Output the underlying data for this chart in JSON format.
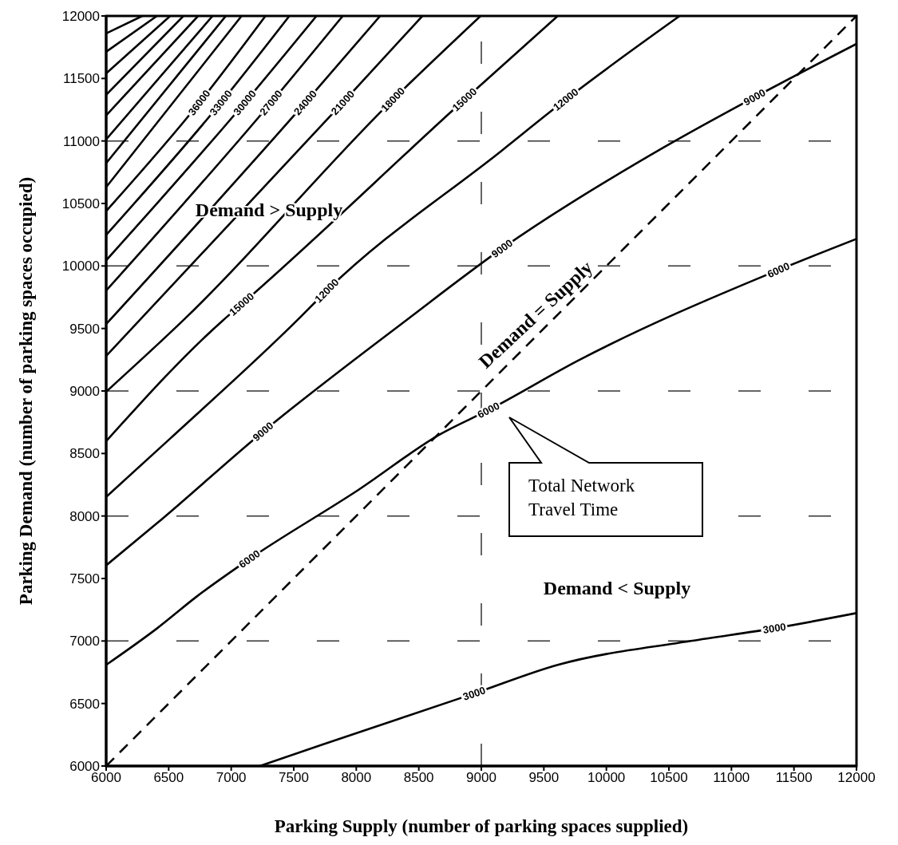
{
  "chart_data": {
    "type": "line",
    "xlabel": "Parking Supply (number of parking spaces supplied)",
    "ylabel": "Parking Demand (number of parking spaces occupied)",
    "xlim": [
      6000,
      12000
    ],
    "ylim": [
      6000,
      12000
    ],
    "xticks": [
      6000,
      6500,
      7000,
      7500,
      8000,
      8500,
      9000,
      9500,
      10000,
      10500,
      11000,
      11500,
      12000
    ],
    "yticks": [
      6000,
      6500,
      7000,
      7500,
      8000,
      8500,
      9000,
      9500,
      10000,
      10500,
      11000,
      11500,
      12000
    ],
    "series": [
      {
        "color": "#000000",
        "x": [
          7229,
          7732,
          8943,
          9611,
          10675,
          11344,
          12000
        ],
        "values": [
          6000,
          6172,
          6580,
          6809,
          7000,
          7102,
          7223
        ]
      },
      {
        "color": "#000000",
        "x": [
          6000,
          6408,
          6726,
          7146,
          8019,
          8675,
          9057,
          9783,
          11376,
          12000
        ],
        "values": [
          6809,
          7102,
          7357,
          7656,
          8210,
          8656,
          8847,
          9248,
          9968,
          10217
        ]
      },
      {
        "color": "#000000",
        "x": [
          6000,
          6408,
          7255,
          8401,
          9166,
          10459,
          11185,
          12000
        ],
        "values": [
          7605,
          7943,
          8675,
          9567,
          10140,
          10949,
          11350,
          11777
        ]
      },
      {
        "color": "#000000",
        "x": [
          6000,
          6510,
          7529,
          7764,
          9166,
          9675,
          10586
        ],
        "values": [
          8153,
          8618,
          9567,
          9803,
          10925,
          11331,
          12000
        ]
      },
      {
        "color": "#000000",
        "x": [
          6000,
          6936,
          7083,
          8866,
          9611
        ],
        "values": [
          8599,
          9567,
          9694,
          11331,
          12000
        ]
      },
      {
        "color": "#000000",
        "x": [
          6000,
          6618,
          8293,
          8994
        ],
        "values": [
          8994,
          9567,
          11331,
          12000
        ]
      },
      {
        "color": "#000000",
        "x": [
          6000,
          7892,
          8529
        ],
        "values": [
          9280,
          11306,
          12000
        ]
      },
      {
        "color": "#000000",
        "x": [
          6000,
          7592,
          8191
        ],
        "values": [
          9535,
          11306,
          12000
        ]
      },
      {
        "color": "#000000",
        "x": [
          6000,
          7318,
          7892
        ],
        "values": [
          9803,
          11306,
          12000
        ]
      },
      {
        "color": "#000000",
        "x": [
          6000,
          7108,
          7682
        ],
        "values": [
          10045,
          11306,
          12000
        ]
      },
      {
        "color": "#000000",
        "x": [
          6000,
          6917,
          7465
        ],
        "values": [
          10248,
          11306,
          12000
        ]
      },
      {
        "color": "#000000",
        "x": [
          6000,
          6745,
          7274
        ],
        "values": [
          10439,
          11306,
          12000
        ]
      },
      {
        "color": "#000000",
        "x": [
          6000,
          7083
        ],
        "values": [
          10631,
          12000
        ]
      },
      {
        "color": "#000000",
        "x": [
          6000,
          6957
        ],
        "values": [
          10822,
          12000
        ]
      },
      {
        "color": "#000000",
        "x": [
          6000,
          6851
        ],
        "values": [
          11013,
          12000
        ]
      },
      {
        "color": "#000000",
        "x": [
          6000,
          6735
        ],
        "values": [
          11204,
          12000
        ]
      },
      {
        "color": "#000000",
        "x": [
          6000,
          6618
        ],
        "values": [
          11369,
          12000
        ]
      },
      {
        "color": "#000000",
        "x": [
          6000,
          6512
        ],
        "values": [
          11541,
          12000
        ]
      },
      {
        "color": "#000000",
        "x": [
          6000,
          6406
        ],
        "values": [
          11713,
          12000
        ]
      },
      {
        "color": "#000000",
        "x": [
          6000,
          6289
        ],
        "values": [
          11860,
          12000
        ]
      },
      {
        "color": "#000000",
        "line_style": "dashed",
        "x": [
          6000,
          12000
        ],
        "values": [
          6000,
          12000
        ]
      }
    ],
    "ref_lines": [
      {
        "axis": "y",
        "value": 7000,
        "line_style": "dashed",
        "color": "#333333"
      },
      {
        "axis": "y",
        "value": 8000,
        "line_style": "dashed",
        "color": "#333333"
      },
      {
        "axis": "y",
        "value": 9000,
        "line_style": "dashed",
        "color": "#333333"
      },
      {
        "axis": "y",
        "value": 10000,
        "line_style": "dashed",
        "color": "#333333"
      },
      {
        "axis": "y",
        "value": 11000,
        "line_style": "dashed",
        "color": "#333333"
      },
      {
        "axis": "x",
        "value": 9000,
        "line_style": "dashed",
        "color": "#333333"
      }
    ],
    "annotations": [
      "Demand > Supply",
      "Demand < Supply",
      "Total Network Travel Time",
      "Demand = Supply",
      {
        "text": "36000",
        "x": 6745,
        "y": 11306
      },
      {
        "text": "33000",
        "x": 6917,
        "y": 11306
      },
      {
        "text": "30000",
        "x": 7108,
        "y": 11306
      },
      {
        "text": "27000",
        "x": 7318,
        "y": 11306
      },
      {
        "text": "24000",
        "x": 7592,
        "y": 11306
      },
      {
        "text": "21000",
        "x": 7892,
        "y": 11306
      },
      {
        "text": "18000",
        "x": 8293,
        "y": 11331
      },
      {
        "text": "15000",
        "x": 8866,
        "y": 11331
      },
      {
        "text": "12000",
        "x": 9675,
        "y": 11331
      },
      {
        "text": "9000",
        "x": 11185,
        "y": 11350
      },
      {
        "text": "15000",
        "x": 7083,
        "y": 9694
      },
      {
        "text": "12000",
        "x": 7764,
        "y": 9803
      },
      {
        "text": "9000",
        "x": 9166,
        "y": 10140
      },
      {
        "text": "9000",
        "x": 7255,
        "y": 8675
      },
      {
        "text": "6000",
        "x": 11376,
        "y": 9968
      },
      {
        "text": "6000",
        "x": 9057,
        "y": 8847
      },
      {
        "text": "6000",
        "x": 7146,
        "y": 7656
      },
      {
        "text": "3000",
        "x": 11344,
        "y": 7102
      },
      {
        "text": "3000",
        "x": 8943,
        "y": 6580
      }
    ]
  }
}
